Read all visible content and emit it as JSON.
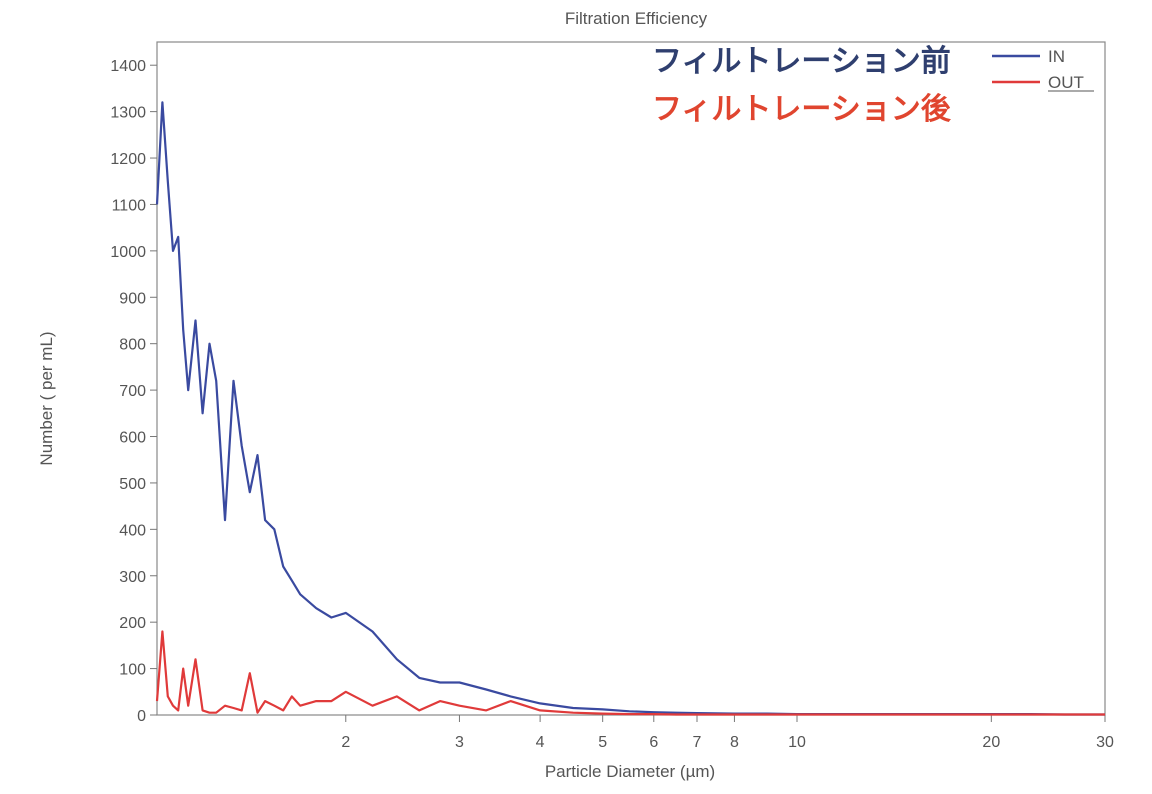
{
  "chart_data": {
    "type": "line",
    "title": "Filtration Efficiency",
    "xlabel": "Particle Diameter (µm)",
    "ylabel": "Number ( per mL)",
    "xscale": "log",
    "xlim": [
      1.02,
      30
    ],
    "ylim": [
      0,
      1450
    ],
    "x_ticks": [
      2,
      3,
      4,
      5,
      6,
      7,
      8,
      10,
      20,
      30
    ],
    "y_ticks": [
      0,
      100,
      200,
      300,
      400,
      500,
      600,
      700,
      800,
      900,
      1000,
      1100,
      1200,
      1300,
      1400
    ],
    "grid": false,
    "legend": {
      "placement": "top-right",
      "entries": [
        {
          "label": "IN",
          "color": "#3a4aa0"
        },
        {
          "label": "OUT",
          "color": "#e03a3a"
        }
      ]
    },
    "annotations": [
      {
        "text": "フィルトレーション前",
        "color": "#2f3f6f",
        "series": "IN"
      },
      {
        "text": "フィルトレーション後",
        "color": "#e0452f",
        "series": "OUT"
      }
    ],
    "series": [
      {
        "name": "IN",
        "color": "#3a4aa0",
        "x": [
          1.02,
          1.04,
          1.06,
          1.08,
          1.1,
          1.12,
          1.14,
          1.17,
          1.2,
          1.23,
          1.26,
          1.3,
          1.34,
          1.38,
          1.42,
          1.46,
          1.5,
          1.55,
          1.6,
          1.65,
          1.7,
          1.8,
          1.9,
          2.0,
          2.2,
          2.4,
          2.6,
          2.8,
          3.0,
          3.3,
          3.6,
          4.0,
          4.5,
          5.0,
          5.5,
          6.0,
          6.5,
          7.0,
          8.0,
          9.0,
          10,
          12,
          14,
          17,
          20,
          23,
          26,
          30
        ],
        "y": [
          1100,
          1320,
          1150,
          1000,
          1030,
          830,
          700,
          850,
          650,
          800,
          720,
          420,
          720,
          580,
          480,
          560,
          420,
          400,
          320,
          290,
          260,
          230,
          210,
          220,
          180,
          120,
          80,
          70,
          70,
          55,
          40,
          25,
          15,
          12,
          8,
          6,
          5,
          4,
          3,
          3,
          2,
          2,
          2,
          2,
          2,
          2,
          1,
          1
        ]
      },
      {
        "name": "OUT",
        "color": "#e03a3a",
        "x": [
          1.02,
          1.04,
          1.06,
          1.08,
          1.1,
          1.12,
          1.14,
          1.17,
          1.2,
          1.23,
          1.26,
          1.3,
          1.34,
          1.38,
          1.42,
          1.46,
          1.5,
          1.55,
          1.6,
          1.65,
          1.7,
          1.8,
          1.9,
          2.0,
          2.2,
          2.4,
          2.6,
          2.8,
          3.0,
          3.3,
          3.6,
          4.0,
          4.5,
          5.0,
          5.5,
          6.0,
          6.5,
          7.0,
          8.0,
          9.0,
          10,
          12,
          14,
          17,
          20,
          23,
          26,
          30
        ],
        "y": [
          30,
          180,
          40,
          20,
          10,
          100,
          20,
          120,
          10,
          5,
          5,
          20,
          15,
          10,
          90,
          5,
          30,
          20,
          10,
          40,
          20,
          30,
          30,
          50,
          20,
          40,
          10,
          30,
          20,
          10,
          30,
          10,
          5,
          3,
          2,
          2,
          1,
          1,
          1,
          1,
          1,
          1,
          1,
          1,
          1,
          1,
          1,
          1
        ]
      }
    ]
  }
}
